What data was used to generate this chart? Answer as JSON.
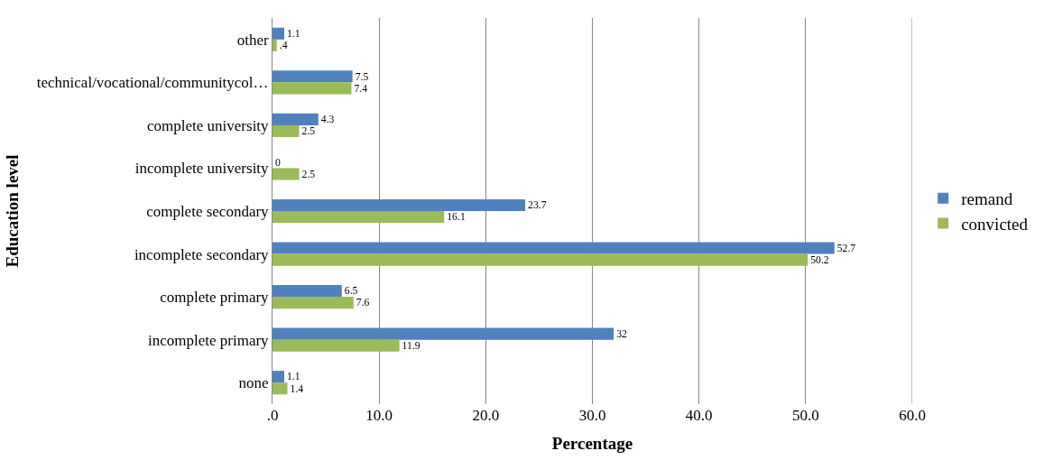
{
  "chart_data": {
    "type": "bar",
    "orientation": "horizontal",
    "xlabel": "Percentage",
    "ylabel": "Education level",
    "categories": [
      "other",
      "technical/vocational/communitycol…",
      "complete university",
      "incomplete university",
      "complete secondary",
      "incomplete secondary",
      "complete primary",
      "incomplete primary",
      "none"
    ],
    "series": [
      {
        "name": "remand",
        "color": "#4f81bd",
        "values": [
          1.1,
          7.5,
          4.3,
          0,
          23.7,
          52.7,
          6.5,
          32,
          1.1
        ],
        "value_labels": [
          "1.1",
          "7.5",
          "4.3",
          "0",
          "23.7",
          "52.7",
          "6.5",
          "32",
          "1.1"
        ]
      },
      {
        "name": "convicted",
        "color": "#9bbb59",
        "values": [
          0.4,
          7.4,
          2.5,
          2.5,
          16.1,
          50.2,
          7.6,
          11.9,
          1.4
        ],
        "value_labels": [
          ".4",
          "7.4",
          "2.5",
          "2.5",
          "16.1",
          "50.2",
          "7.6",
          "11.9",
          "1.4"
        ]
      }
    ],
    "xlim": [
      0,
      60
    ],
    "xticks": [
      {
        "value": 0,
        "label": ".0"
      },
      {
        "value": 10,
        "label": "10.0"
      },
      {
        "value": 20,
        "label": "20.0"
      },
      {
        "value": 30,
        "label": "30.0"
      },
      {
        "value": 40,
        "label": "40.0"
      },
      {
        "value": 50,
        "label": "50.0"
      },
      {
        "value": 60,
        "label": "60.0"
      }
    ],
    "grid": "x",
    "legend": "right"
  }
}
